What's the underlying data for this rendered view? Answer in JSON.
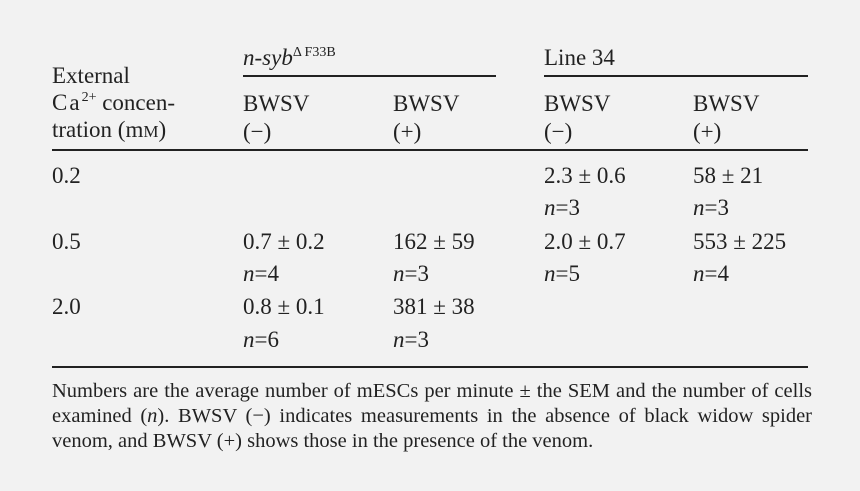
{
  "header": {
    "row_label": {
      "line1": "External",
      "ca_symbol": "Ca",
      "ca_superscript": "2+",
      "line2_rest": " concen-",
      "line3": "tration (m",
      "unit_smallcap": "M",
      "line3_close": ")"
    },
    "groups": [
      {
        "name_italic": "n-syb",
        "name_superscript": "Δ F33B"
      },
      {
        "name": "Line 34"
      }
    ],
    "subcolumns": [
      {
        "label": "BWSV",
        "sign": "(−)"
      },
      {
        "label": "BWSV",
        "sign": "(+)"
      },
      {
        "label": "BWSV",
        "sign": "(−)"
      },
      {
        "label": "BWSV",
        "sign": "(+)"
      }
    ]
  },
  "rows": [
    {
      "concentration": "0.2",
      "cells": [
        {
          "value": "",
          "n": ""
        },
        {
          "value": "",
          "n": ""
        },
        {
          "value": "2.3 ± 0.6",
          "n": "=3"
        },
        {
          "value": "58 ± 21",
          "n": "=3"
        }
      ]
    },
    {
      "concentration": "0.5",
      "cells": [
        {
          "value": "0.7 ± 0.2",
          "n": "=4"
        },
        {
          "value": "162 ± 59",
          "n": "=3"
        },
        {
          "value": "2.0 ± 0.7",
          "n": "=5"
        },
        {
          "value": "553 ± 225",
          "n": "=4"
        }
      ]
    },
    {
      "concentration": "2.0",
      "cells": [
        {
          "value": "0.8 ± 0.1",
          "n": "=6"
        },
        {
          "value": "381 ± 38",
          "n": "=3"
        },
        {
          "value": "",
          "n": ""
        },
        {
          "value": "",
          "n": ""
        }
      ]
    }
  ],
  "n_symbol": "n",
  "footnote": {
    "part1": "Numbers are the average number of mESCs per minute ± the SEM and the number of cells examined (",
    "n": "n",
    "part2": "). BWSV (−) indicates measurements in the absence of black widow spider venom, and BWSV (+) shows those in the presence of the venom."
  }
}
